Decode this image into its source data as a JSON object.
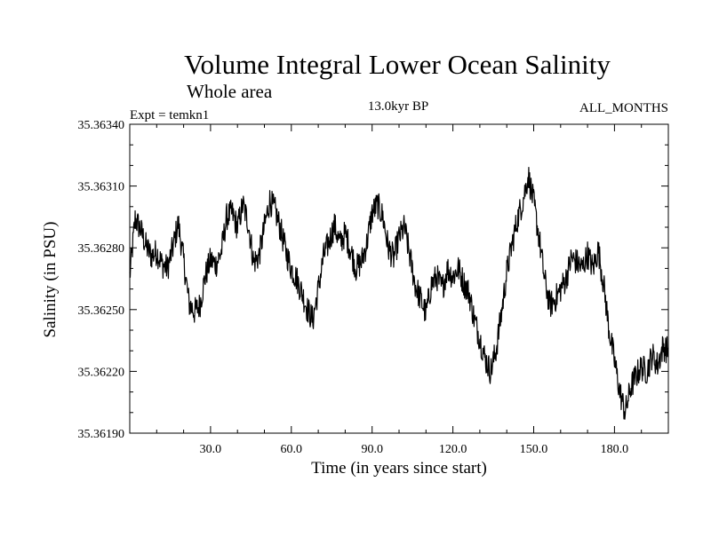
{
  "chart_data": {
    "type": "line",
    "title": "Volume Integral Lower Ocean Salinity",
    "subtitle": "Whole area",
    "experiment": "Expt = temkn1",
    "period": "13.0kyr BP",
    "months": "ALL_MONTHS",
    "xlabel": "Time (in years since start)",
    "ylabel": "Salinity (in PSU)",
    "xlim": [
      0,
      200
    ],
    "ylim": [
      35.3619,
      35.3634
    ],
    "x_ticks": [
      30,
      60,
      90,
      120,
      150,
      180
    ],
    "x_tick_labels": [
      "30.0",
      "60.0",
      "90.0",
      "120.0",
      "150.0",
      "180.0"
    ],
    "y_ticks": [
      35.3619,
      35.3622,
      35.3625,
      35.3628,
      35.3631,
      35.3634
    ],
    "y_tick_labels": [
      "35.36190",
      "35.36220",
      "35.36250",
      "35.36280",
      "35.36310",
      "35.36340"
    ],
    "series": [
      {
        "name": "Salinity",
        "color": "#000000",
        "x": [
          0,
          2,
          4,
          6,
          8,
          10,
          12,
          14,
          16,
          18,
          20,
          22,
          24,
          26,
          28,
          30,
          32,
          34,
          36,
          38,
          40,
          42,
          44,
          46,
          48,
          50,
          52,
          54,
          56,
          58,
          60,
          62,
          64,
          66,
          68,
          70,
          72,
          74,
          76,
          78,
          80,
          82,
          84,
          86,
          88,
          90,
          92,
          94,
          96,
          98,
          100,
          102,
          104,
          106,
          108,
          110,
          112,
          114,
          116,
          118,
          120,
          122,
          124,
          126,
          128,
          130,
          132,
          134,
          136,
          138,
          140,
          142,
          144,
          146,
          148,
          150,
          152,
          154,
          156,
          158,
          160,
          162,
          164,
          166,
          168,
          170,
          172,
          174,
          176,
          178,
          180,
          182,
          184,
          186,
          188,
          190,
          192,
          194,
          196,
          198,
          200
        ],
        "values": [
          35.36266,
          35.36294,
          35.36289,
          35.36281,
          35.36276,
          35.36278,
          35.36272,
          35.3627,
          35.3628,
          35.36292,
          35.36274,
          35.36253,
          35.36249,
          35.36252,
          35.36266,
          35.36274,
          35.36272,
          35.36278,
          35.36295,
          35.36297,
          35.3629,
          35.36301,
          35.36292,
          35.36273,
          35.36276,
          35.3629,
          35.36303,
          35.36298,
          35.36289,
          35.36278,
          35.3627,
          35.36265,
          35.36258,
          35.3625,
          35.36245,
          35.3626,
          35.36276,
          35.36283,
          35.36291,
          35.36282,
          35.36287,
          35.36279,
          35.3627,
          35.36273,
          35.36282,
          35.36297,
          35.36301,
          35.36295,
          35.3628,
          35.36275,
          35.36285,
          35.3629,
          35.36276,
          35.36262,
          35.36255,
          35.36248,
          35.36262,
          35.36266,
          35.3626,
          35.3627,
          35.36266,
          35.3627,
          35.36263,
          35.36258,
          35.36245,
          35.36236,
          35.36226,
          35.3622,
          35.3623,
          35.36248,
          35.36268,
          35.36282,
          35.36294,
          35.36303,
          35.36315,
          35.36302,
          35.36285,
          35.36265,
          35.36252,
          35.36255,
          35.3626,
          35.36265,
          35.36275,
          35.36273,
          35.3627,
          35.36277,
          35.3627,
          35.36279,
          35.36262,
          35.3624,
          35.36225,
          35.3621,
          35.362,
          35.36212,
          35.36218,
          35.36222,
          35.3622,
          35.36228,
          35.36223,
          35.36232,
          35.3623
        ]
      }
    ]
  }
}
